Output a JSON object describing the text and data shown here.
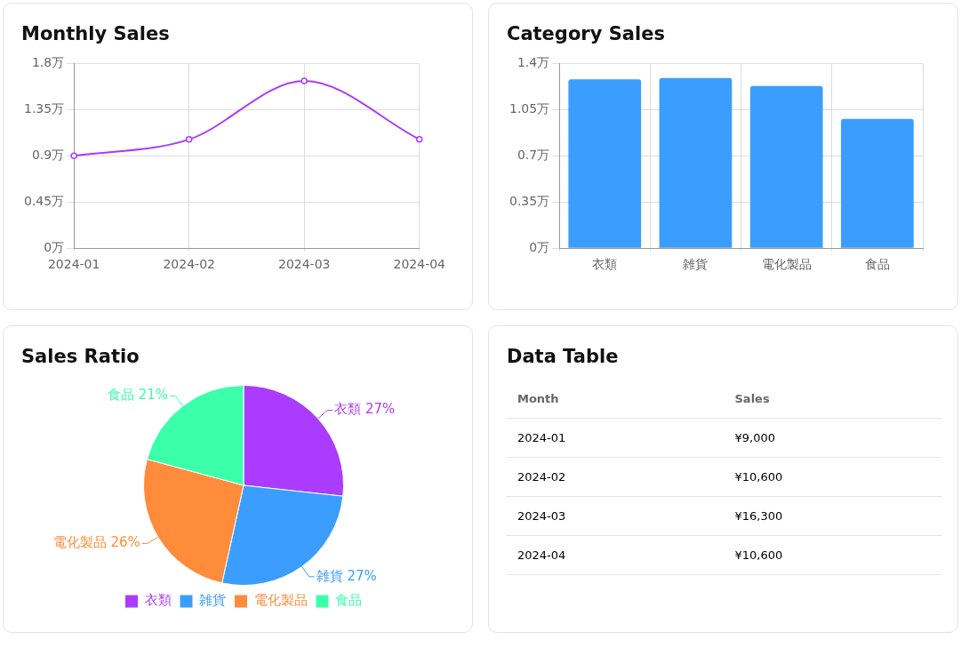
{
  "chart_data": [
    {
      "type": "line",
      "title": "Monthly Sales",
      "categories": [
        "2024-01",
        "2024-02",
        "2024-03",
        "2024-04"
      ],
      "series": [
        {
          "color": "#aa3bff",
          "values": [
            0.9,
            1.06,
            1.63,
            1.06
          ]
        }
      ],
      "ylim": [
        0,
        1.8
      ],
      "yticks": [
        {
          "value": 0,
          "label": "0万"
        },
        {
          "value": 0.45,
          "label": "0.45万"
        },
        {
          "value": 0.9,
          "label": "0.9万"
        },
        {
          "value": 1.35,
          "label": "1.35万"
        },
        {
          "value": 1.8,
          "label": "1.8万"
        }
      ],
      "grid": true,
      "marker": "circle",
      "legend": false
    },
    {
      "type": "bar",
      "title": "Category Sales",
      "categories": [
        "衣類",
        "雑貨",
        "電化製品",
        "食品"
      ],
      "series": [
        {
          "color": "#3b9eff",
          "values": [
            1.28,
            1.29,
            1.23,
            0.98
          ]
        }
      ],
      "ylim": [
        0,
        1.4
      ],
      "yticks": [
        {
          "value": 0,
          "label": "0万"
        },
        {
          "value": 0.35,
          "label": "0.35万"
        },
        {
          "value": 0.7,
          "label": "0.7万"
        },
        {
          "value": 1.05,
          "label": "1.05万"
        },
        {
          "value": 1.4,
          "label": "1.4万"
        }
      ],
      "grid": true,
      "legend": false
    },
    {
      "type": "pie",
      "title": "Sales Ratio",
      "categories": [
        "衣類",
        "雑貨",
        "電化製品",
        "食品"
      ],
      "values": [
        27,
        27,
        26,
        21
      ],
      "colors": [
        "#aa3bff",
        "#3b9eff",
        "#ff8c3b",
        "#3bffaa"
      ],
      "value_labels": [
        "衣類 27%",
        "雑貨 27%",
        "電化製品 26%",
        "食品 21%"
      ],
      "legend": "bottom"
    },
    {
      "type": "other",
      "title": "Data Table",
      "xlabel": "Month",
      "ylabel": "Sales",
      "categories": [
        "2024-01",
        "2024-02",
        "2024-03",
        "2024-04"
      ],
      "value_labels": [
        "¥9,000",
        "¥10,600",
        "¥16,300",
        "¥10,600"
      ]
    }
  ]
}
